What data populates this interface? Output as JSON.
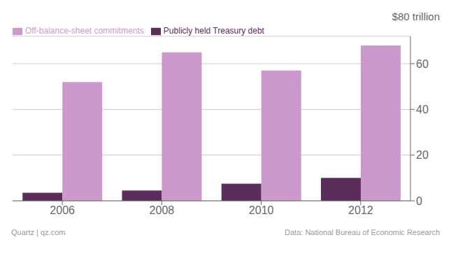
{
  "chart_data": {
    "type": "bar",
    "annotations": [
      "$80 trillion",
      "Quartz | qz.com",
      "Data: National Bureau of Economic Research"
    ],
    "categories": [
      "2006",
      "2008",
      "2010",
      "2012"
    ],
    "series": [
      {
        "name": "Publicly held Treasury debt",
        "color": "#5b2d5b",
        "values": [
          3.5,
          4.5,
          7.5,
          10.0
        ]
      },
      {
        "name": "Off-balance-sheet commitments",
        "color": "#cc99cc",
        "values": [
          52.0,
          65.0,
          57.0,
          68.0
        ]
      }
    ],
    "ylim": [
      0,
      72
    ],
    "yticks": [
      0,
      20,
      40,
      60
    ],
    "grid": true,
    "legend": "upper left"
  }
}
